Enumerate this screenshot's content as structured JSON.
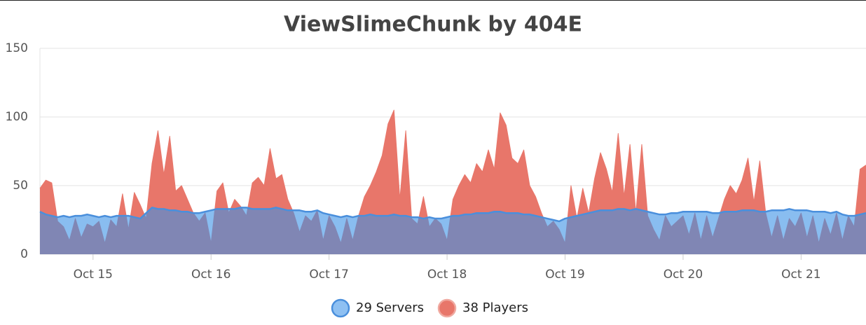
{
  "chart_data": {
    "type": "area",
    "title": "ViewSlimeChunk by 404E",
    "x": [
      14.55,
      14.6,
      14.65,
      14.7,
      14.75,
      14.8,
      14.85,
      14.9,
      14.95,
      15.0,
      15.05,
      15.1,
      15.15,
      15.2,
      15.25,
      15.3,
      15.35,
      15.4,
      15.45,
      15.5,
      15.55,
      15.6,
      15.65,
      15.7,
      15.75,
      15.8,
      15.85,
      15.9,
      15.95,
      16.0,
      16.05,
      16.1,
      16.15,
      16.2,
      16.25,
      16.3,
      16.35,
      16.4,
      16.45,
      16.5,
      16.55,
      16.6,
      16.65,
      16.7,
      16.75,
      16.8,
      16.85,
      16.9,
      16.95,
      17.0,
      17.05,
      17.1,
      17.15,
      17.2,
      17.25,
      17.3,
      17.35,
      17.4,
      17.45,
      17.5,
      17.55,
      17.6,
      17.65,
      17.7,
      17.75,
      17.8,
      17.85,
      17.9,
      17.95,
      18.0,
      18.05,
      18.1,
      18.15,
      18.2,
      18.25,
      18.3,
      18.35,
      18.4,
      18.45,
      18.5,
      18.55,
      18.6,
      18.65,
      18.7,
      18.75,
      18.8,
      18.85,
      18.9,
      18.95,
      19.0,
      19.05,
      19.1,
      19.15,
      19.2,
      19.25,
      19.3,
      19.35,
      19.4,
      19.45,
      19.5,
      19.55,
      19.6,
      19.65,
      19.7,
      19.75,
      19.8,
      19.85,
      19.9,
      19.95,
      20.0,
      20.05,
      20.1,
      20.15,
      20.2,
      20.25,
      20.3,
      20.35,
      20.4,
      20.45,
      20.5,
      20.55,
      20.6,
      20.65,
      20.7,
      20.75,
      20.8,
      20.85,
      20.9,
      20.95,
      21.0,
      21.05,
      21.1,
      21.15,
      21.2,
      21.25,
      21.3,
      21.35,
      21.4,
      21.45,
      21.5,
      21.55
    ],
    "series": [
      {
        "name": "29 Servers",
        "color": "#4a8fdc",
        "fill": "#3a91e6",
        "values": [
          31,
          29,
          28,
          27,
          28,
          27,
          28,
          28,
          29,
          28,
          27,
          28,
          27,
          28,
          28,
          28,
          27,
          26,
          30,
          34,
          33,
          33,
          32,
          32,
          31,
          31,
          30,
          30,
          31,
          32,
          33,
          33,
          33,
          33,
          34,
          34,
          33,
          33,
          33,
          33,
          34,
          33,
          32,
          32,
          32,
          31,
          31,
          32,
          30,
          29,
          28,
          27,
          28,
          27,
          28,
          28,
          29,
          28,
          28,
          28,
          29,
          28,
          28,
          27,
          27,
          26,
          27,
          26,
          26,
          27,
          28,
          28,
          29,
          29,
          30,
          30,
          30,
          31,
          31,
          30,
          30,
          30,
          29,
          29,
          28,
          27,
          26,
          25,
          24,
          26,
          27,
          28,
          29,
          30,
          31,
          32,
          32,
          32,
          33,
          33,
          32,
          33,
          32,
          31,
          30,
          29,
          29,
          30,
          30,
          31,
          31,
          31,
          31,
          31,
          30,
          30,
          31,
          31,
          31,
          32,
          32,
          32,
          31,
          31,
          32,
          32,
          32,
          33,
          32,
          32,
          32,
          31,
          31,
          31,
          30,
          31,
          29,
          28,
          28,
          29,
          30
        ]
      },
      {
        "name": "38 Players",
        "color": "#e8766a",
        "fill": "#e8766a",
        "values": [
          48,
          54,
          52,
          24,
          20,
          10,
          26,
          12,
          22,
          20,
          24,
          8,
          25,
          20,
          44,
          18,
          45,
          36,
          26,
          66,
          90,
          58,
          86,
          46,
          50,
          40,
          30,
          24,
          30,
          8,
          46,
          52,
          30,
          40,
          35,
          28,
          52,
          56,
          50,
          77,
          55,
          58,
          40,
          30,
          16,
          28,
          24,
          32,
          10,
          28,
          20,
          8,
          26,
          10,
          28,
          42,
          50,
          60,
          72,
          95,
          105,
          40,
          90,
          26,
          22,
          42,
          20,
          26,
          22,
          10,
          40,
          50,
          58,
          52,
          66,
          60,
          76,
          62,
          103,
          94,
          70,
          66,
          76,
          50,
          42,
          30,
          20,
          24,
          18,
          8,
          50,
          26,
          48,
          30,
          55,
          74,
          62,
          45,
          88,
          42,
          80,
          30,
          80,
          28,
          18,
          10,
          28,
          20,
          24,
          28,
          14,
          30,
          10,
          28,
          12,
          26,
          40,
          50,
          44,
          54,
          70,
          38,
          68,
          30,
          12,
          28,
          10,
          26,
          20,
          30,
          12,
          28,
          8,
          26,
          14,
          30,
          10,
          28,
          20,
          62,
          65
        ]
      }
    ],
    "xlim": [
      14.55,
      21.55
    ],
    "xticks": [
      {
        "value": 15,
        "label": "Oct 15"
      },
      {
        "value": 16,
        "label": "Oct 16"
      },
      {
        "value": 17,
        "label": "Oct 17"
      },
      {
        "value": 18,
        "label": "Oct 18"
      },
      {
        "value": 19,
        "label": "Oct 19"
      },
      {
        "value": 20,
        "label": "Oct 20"
      },
      {
        "value": 21,
        "label": "Oct 21"
      }
    ],
    "ylim": [
      0,
      150
    ],
    "yticks": [
      0,
      50,
      100,
      150
    ],
    "grid": true
  }
}
